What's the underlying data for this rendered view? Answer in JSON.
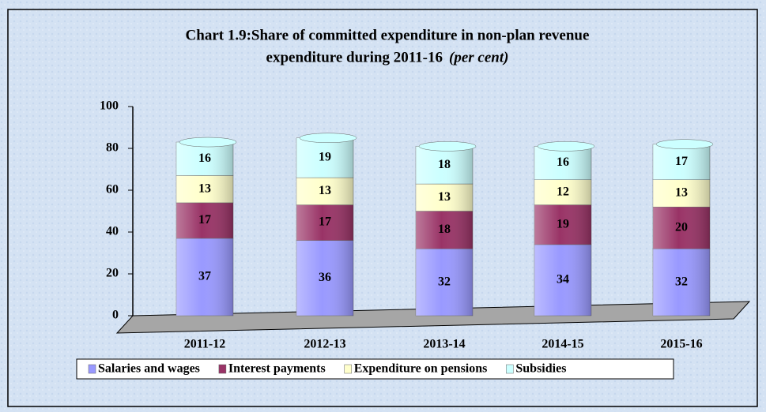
{
  "chart_data": {
    "type": "stacked_bar",
    "title_lines": [
      "Chart 1.9:Share of committed expenditure in non-plan revenue",
      "expenditure during 2011-16"
    ],
    "title_unit": "(per cent)",
    "categories": [
      "2011-12",
      "2012-13",
      "2013-14",
      "2014-15",
      "2015-16"
    ],
    "series": [
      {
        "name": "Salaries and wages",
        "color": "#9999ff",
        "values": [
          37,
          36,
          32,
          34,
          32
        ]
      },
      {
        "name": "Interest payments",
        "color": "#993366",
        "values": [
          17,
          17,
          18,
          19,
          20
        ]
      },
      {
        "name": "Expenditure on pensions",
        "color": "#ffffcc",
        "values": [
          13,
          13,
          13,
          12,
          13
        ]
      },
      {
        "name": "Subsidies",
        "color": "#ccffff",
        "values": [
          16,
          19,
          18,
          16,
          17
        ]
      }
    ],
    "ylim": [
      0,
      100
    ],
    "yticks": [
      0,
      20,
      40,
      60,
      80,
      100
    ],
    "grid": false,
    "legend": "bottom"
  }
}
